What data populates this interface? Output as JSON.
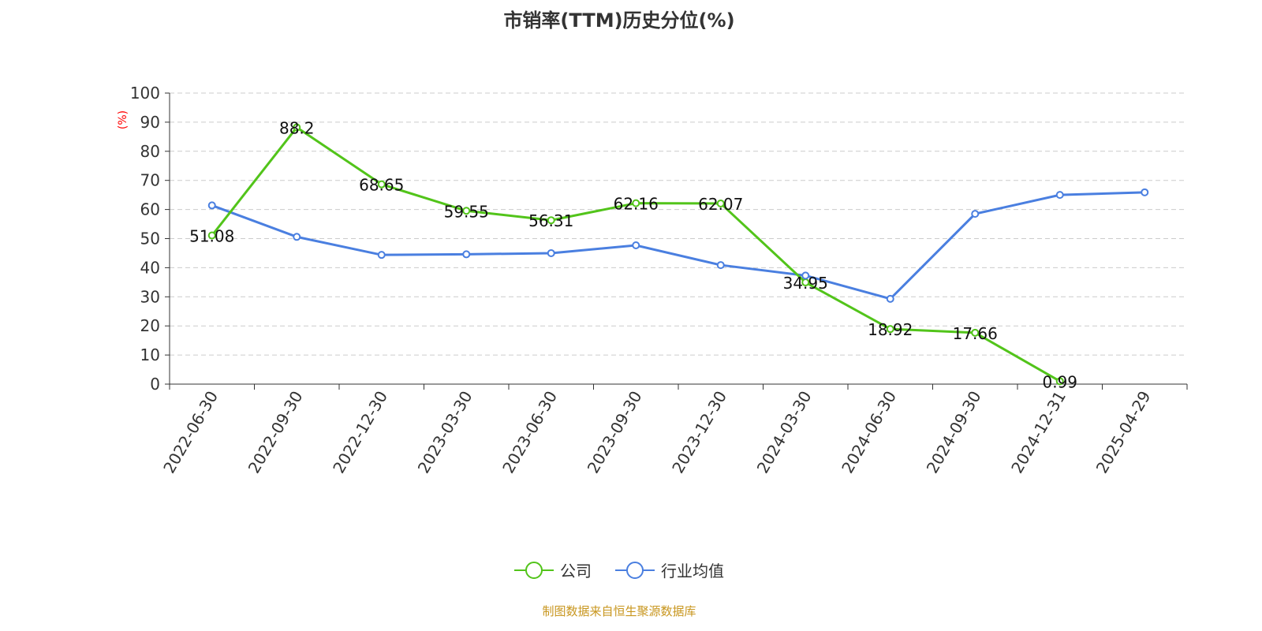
{
  "chart_data": {
    "type": "line",
    "title": "市销率(TTM)历史分位(%)",
    "ylabel": "(%)",
    "xlabel": "",
    "ylim": [
      0,
      100
    ],
    "yticks": [
      0,
      10,
      20,
      30,
      40,
      50,
      60,
      70,
      80,
      90,
      100
    ],
    "grid": true,
    "legend_position": "bottom",
    "categories": [
      "2022-06-30",
      "2022-09-30",
      "2022-12-30",
      "2023-03-30",
      "2023-06-30",
      "2023-09-30",
      "2023-12-30",
      "2024-03-30",
      "2024-06-30",
      "2024-09-30",
      "2024-12-31",
      "2025-04-29"
    ],
    "series": [
      {
        "name": "公司",
        "color": "#52c41a",
        "labels": true,
        "values": [
          51.08,
          88.2,
          68.65,
          59.55,
          56.31,
          62.16,
          62.07,
          34.95,
          18.92,
          17.66,
          0.99,
          null
        ]
      },
      {
        "name": "行业均值",
        "color": "#4a7fe0",
        "labels": false,
        "values": [
          61.4,
          50.6,
          44.4,
          44.6,
          45.0,
          47.7,
          40.9,
          37.3,
          29.3,
          58.5,
          65.0,
          65.9
        ]
      }
    ]
  },
  "source": "制图数据来自恒生聚源数据库"
}
